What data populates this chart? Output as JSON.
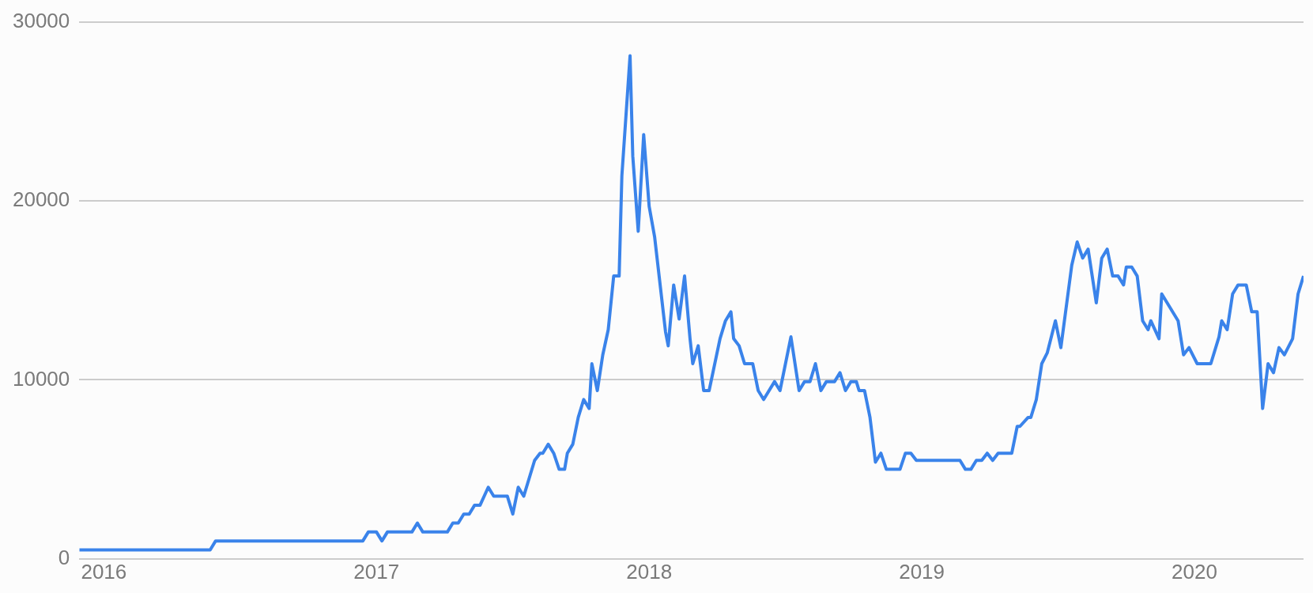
{
  "chart_data": {
    "type": "line",
    "xlim": [
      2015.91,
      2020.4
    ],
    "xticks": [
      2016,
      2017,
      2018,
      2019,
      2020
    ],
    "ylim": [
      0,
      30000
    ],
    "yticks": [
      0,
      10000,
      20000,
      30000
    ],
    "grid": "y",
    "marker": "none",
    "x": [
      2015.91,
      2016.39,
      2016.41,
      2016.95,
      2016.97,
      2017.0,
      2017.02,
      2017.04,
      2017.13,
      2017.15,
      2017.17,
      2017.26,
      2017.28,
      2017.3,
      2017.32,
      2017.34,
      2017.36,
      2017.38,
      2017.41,
      2017.43,
      2017.48,
      2017.5,
      2017.52,
      2017.54,
      2017.58,
      2017.6,
      2017.61,
      2017.63,
      2017.65,
      2017.67,
      2017.69,
      2017.7,
      2017.72,
      2017.74,
      2017.76,
      2017.78,
      2017.79,
      2017.81,
      2017.83,
      2017.85,
      2017.87,
      2017.89,
      2017.9,
      2017.93,
      2017.94,
      2017.96,
      2017.98,
      2018.0,
      2018.02,
      2018.06,
      2018.07,
      2018.09,
      2018.11,
      2018.13,
      2018.15,
      2018.16,
      2018.18,
      2018.2,
      2018.22,
      2018.26,
      2018.28,
      2018.3,
      2018.31,
      2018.33,
      2018.35,
      2018.38,
      2018.4,
      2018.42,
      2018.46,
      2018.48,
      2018.52,
      2018.54,
      2018.55,
      2018.57,
      2018.59,
      2018.61,
      2018.63,
      2018.65,
      2018.68,
      2018.7,
      2018.72,
      2018.74,
      2018.76,
      2018.77,
      2018.79,
      2018.81,
      2018.83,
      2018.85,
      2018.87,
      2018.92,
      2018.94,
      2018.96,
      2018.98,
      2019.14,
      2019.16,
      2019.18,
      2019.2,
      2019.22,
      2019.24,
      2019.26,
      2019.28,
      2019.33,
      2019.35,
      2019.36,
      2019.39,
      2019.4,
      2019.42,
      2019.44,
      2019.46,
      2019.49,
      2019.51,
      2019.55,
      2019.57,
      2019.59,
      2019.61,
      2019.64,
      2019.66,
      2019.68,
      2019.7,
      2019.72,
      2019.74,
      2019.75,
      2019.77,
      2019.79,
      2019.81,
      2019.83,
      2019.84,
      2019.87,
      2019.88,
      2019.94,
      2019.96,
      2019.98,
      2020.01,
      2020.06,
      2020.09,
      2020.1,
      2020.12,
      2020.14,
      2020.16,
      2020.19,
      2020.21,
      2020.23,
      2020.25,
      2020.27,
      2020.29,
      2020.31,
      2020.33,
      2020.36,
      2020.38,
      2020.4
    ],
    "series": [
      {
        "color": "#3a83ea",
        "values": [
          500,
          500,
          1000,
          1000,
          1500,
          1500,
          1000,
          1500,
          1500,
          2000,
          1500,
          1500,
          2000,
          2000,
          2500,
          2500,
          3000,
          3000,
          4000,
          3500,
          3500,
          2500,
          4000,
          3500,
          5500,
          5900,
          5900,
          6400,
          5900,
          5000,
          5000,
          5900,
          6400,
          7900,
          8900,
          8400,
          10900,
          9400,
          11400,
          12800,
          15800,
          15800,
          21400,
          28100,
          22500,
          18300,
          23700,
          19700,
          18000,
          12700,
          11900,
          15300,
          13400,
          15800,
          12300,
          10900,
          11900,
          9400,
          9400,
          12300,
          13300,
          13800,
          12300,
          11900,
          10900,
          10900,
          9400,
          8900,
          9900,
          9400,
          12400,
          10400,
          9400,
          9900,
          9900,
          10900,
          9400,
          9900,
          9900,
          10400,
          9400,
          9900,
          9900,
          9400,
          9400,
          7900,
          5400,
          5900,
          5000,
          5000,
          5900,
          5900,
          5500,
          5500,
          5000,
          5000,
          5500,
          5500,
          5900,
          5500,
          5900,
          5900,
          7400,
          7400,
          7900,
          7900,
          8900,
          10900,
          11500,
          13300,
          11800,
          16400,
          17700,
          16800,
          17300,
          14300,
          16800,
          17300,
          15800,
          15800,
          15300,
          16300,
          16300,
          15800,
          13300,
          12800,
          13300,
          12300,
          14800,
          13300,
          11400,
          11800,
          10900,
          10900,
          12400,
          13300,
          12800,
          14800,
          15300,
          15300,
          13800,
          13800,
          8400,
          10900,
          10400,
          11800,
          11400,
          12300,
          14800,
          15800
        ]
      }
    ]
  }
}
